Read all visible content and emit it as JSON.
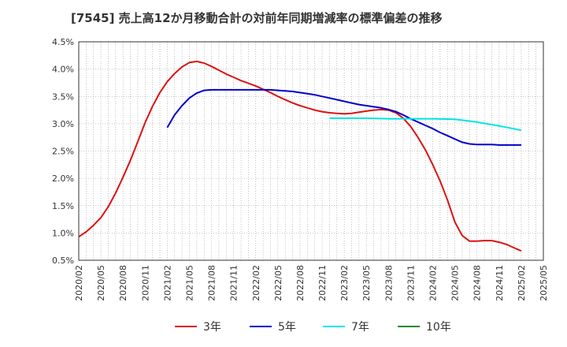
{
  "chart_data": {
    "type": "line",
    "title": "[7545]  売上高12か月移動合計の対前年同期増減率の標準偏差の推移",
    "xlabel": "",
    "ylabel": "",
    "x_range": [
      "2020-02",
      "2025-05"
    ],
    "x_ticks": [
      "2020/02",
      "2020/05",
      "2020/08",
      "2020/11",
      "2021/02",
      "2021/05",
      "2021/08",
      "2021/11",
      "2022/02",
      "2022/05",
      "2022/08",
      "2022/11",
      "2023/02",
      "2023/05",
      "2023/08",
      "2023/11",
      "2024/02",
      "2024/05",
      "2024/08",
      "2024/11",
      "2025/02",
      "2025/05"
    ],
    "ylim": [
      0.5,
      4.5
    ],
    "y_ticks": [
      "0.5%",
      "1.0%",
      "1.5%",
      "2.0%",
      "2.5%",
      "3.0%",
      "3.5%",
      "4.0%",
      "4.5%"
    ],
    "grid": true,
    "legend_position": "bottom",
    "series": [
      {
        "name": "3年",
        "color": "#dd1111",
        "points": [
          [
            "2020-02",
            0.93
          ],
          [
            "2020-03",
            1.02
          ],
          [
            "2020-04",
            1.14
          ],
          [
            "2020-05",
            1.28
          ],
          [
            "2020-06",
            1.48
          ],
          [
            "2020-07",
            1.73
          ],
          [
            "2020-08",
            2.02
          ],
          [
            "2020-09",
            2.33
          ],
          [
            "2020-10",
            2.67
          ],
          [
            "2020-11",
            3.02
          ],
          [
            "2020-12",
            3.32
          ],
          [
            "2021-01",
            3.57
          ],
          [
            "2021-02",
            3.77
          ],
          [
            "2021-03",
            3.92
          ],
          [
            "2021-04",
            4.04
          ],
          [
            "2021-05",
            4.12
          ],
          [
            "2021-06",
            4.14
          ],
          [
            "2021-07",
            4.11
          ],
          [
            "2021-08",
            4.05
          ],
          [
            "2021-09",
            3.98
          ],
          [
            "2021-10",
            3.91
          ],
          [
            "2021-11",
            3.85
          ],
          [
            "2021-12",
            3.79
          ],
          [
            "2022-01",
            3.74
          ],
          [
            "2022-02",
            3.69
          ],
          [
            "2022-03",
            3.63
          ],
          [
            "2022-04",
            3.57
          ],
          [
            "2022-05",
            3.5
          ],
          [
            "2022-06",
            3.44
          ],
          [
            "2022-07",
            3.38
          ],
          [
            "2022-08",
            3.33
          ],
          [
            "2022-09",
            3.29
          ],
          [
            "2022-10",
            3.25
          ],
          [
            "2022-11",
            3.22
          ],
          [
            "2022-12",
            3.2
          ],
          [
            "2023-01",
            3.19
          ],
          [
            "2023-02",
            3.18
          ],
          [
            "2023-03",
            3.19
          ],
          [
            "2023-04",
            3.21
          ],
          [
            "2023-05",
            3.23
          ],
          [
            "2023-06",
            3.25
          ],
          [
            "2023-07",
            3.26
          ],
          [
            "2023-08",
            3.25
          ],
          [
            "2023-09",
            3.2
          ],
          [
            "2023-10",
            3.1
          ],
          [
            "2023-11",
            2.95
          ],
          [
            "2023-12",
            2.75
          ],
          [
            "2024-01",
            2.52
          ],
          [
            "2024-02",
            2.25
          ],
          [
            "2024-03",
            1.95
          ],
          [
            "2024-04",
            1.6
          ],
          [
            "2024-05",
            1.2
          ],
          [
            "2024-06",
            0.95
          ],
          [
            "2024-07",
            0.85
          ],
          [
            "2024-08",
            0.85
          ],
          [
            "2024-09",
            0.86
          ],
          [
            "2024-10",
            0.86
          ],
          [
            "2024-11",
            0.83
          ],
          [
            "2024-12",
            0.79
          ],
          [
            "2025-01",
            0.73
          ],
          [
            "2025-02",
            0.67
          ]
        ]
      },
      {
        "name": "5年",
        "color": "#0000cc",
        "points": [
          [
            "2021-02",
            2.93
          ],
          [
            "2021-03",
            3.16
          ],
          [
            "2021-04",
            3.33
          ],
          [
            "2021-05",
            3.47
          ],
          [
            "2021-06",
            3.56
          ],
          [
            "2021-07",
            3.61
          ],
          [
            "2021-08",
            3.62
          ],
          [
            "2021-09",
            3.62
          ],
          [
            "2021-10",
            3.62
          ],
          [
            "2021-11",
            3.62
          ],
          [
            "2021-12",
            3.62
          ],
          [
            "2022-01",
            3.62
          ],
          [
            "2022-02",
            3.62
          ],
          [
            "2022-03",
            3.62
          ],
          [
            "2022-04",
            3.62
          ],
          [
            "2022-05",
            3.61
          ],
          [
            "2022-06",
            3.6
          ],
          [
            "2022-07",
            3.59
          ],
          [
            "2022-08",
            3.57
          ],
          [
            "2022-09",
            3.55
          ],
          [
            "2022-10",
            3.53
          ],
          [
            "2022-11",
            3.5
          ],
          [
            "2022-12",
            3.47
          ],
          [
            "2023-01",
            3.44
          ],
          [
            "2023-02",
            3.41
          ],
          [
            "2023-03",
            3.38
          ],
          [
            "2023-04",
            3.35
          ],
          [
            "2023-05",
            3.33
          ],
          [
            "2023-06",
            3.31
          ],
          [
            "2023-07",
            3.29
          ],
          [
            "2023-08",
            3.26
          ],
          [
            "2023-09",
            3.22
          ],
          [
            "2023-10",
            3.16
          ],
          [
            "2023-11",
            3.09
          ],
          [
            "2023-12",
            3.03
          ],
          [
            "2024-01",
            2.97
          ],
          [
            "2024-02",
            2.91
          ],
          [
            "2024-03",
            2.84
          ],
          [
            "2024-04",
            2.78
          ],
          [
            "2024-05",
            2.72
          ],
          [
            "2024-06",
            2.66
          ],
          [
            "2024-07",
            2.63
          ],
          [
            "2024-08",
            2.62
          ],
          [
            "2024-09",
            2.62
          ],
          [
            "2024-10",
            2.62
          ],
          [
            "2024-11",
            2.61
          ],
          [
            "2024-12",
            2.61
          ],
          [
            "2025-01",
            2.61
          ],
          [
            "2025-02",
            2.61
          ]
        ]
      },
      {
        "name": "7年",
        "color": "#00e5e5",
        "points": [
          [
            "2022-12",
            3.1
          ],
          [
            "2023-02",
            3.1
          ],
          [
            "2023-05",
            3.1
          ],
          [
            "2023-08",
            3.09
          ],
          [
            "2023-11",
            3.09
          ],
          [
            "2024-02",
            3.09
          ],
          [
            "2024-05",
            3.08
          ],
          [
            "2024-08",
            3.03
          ],
          [
            "2024-11",
            2.96
          ],
          [
            "2025-02",
            2.88
          ]
        ]
      },
      {
        "name": "10年",
        "color": "#228b22",
        "points": []
      }
    ]
  }
}
